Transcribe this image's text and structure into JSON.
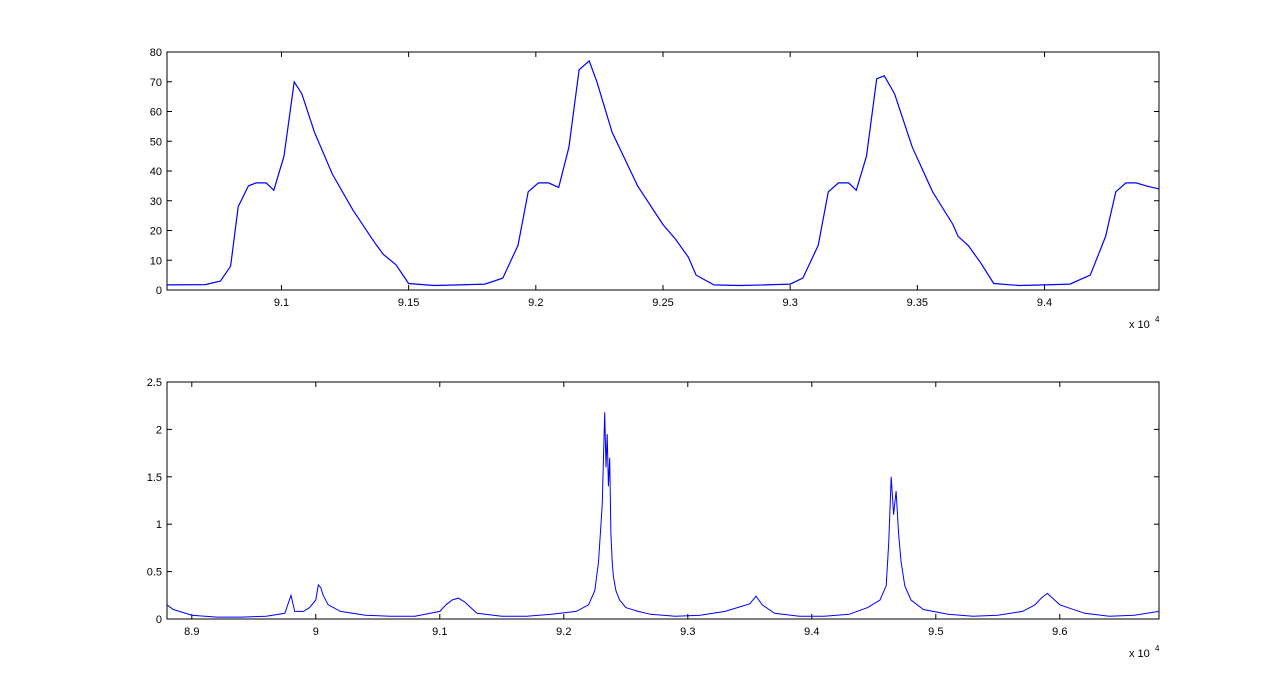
{
  "figure": {
    "background": "#ffffff",
    "line_color": "#0000ff",
    "axes_color": "#000000"
  },
  "chart_data": [
    {
      "type": "line",
      "title": "",
      "xlabel": "",
      "ylabel": "",
      "x_multiplier_label": "x 10",
      "x_multiplier_exp": "4",
      "xlim": [
        9.055,
        9.445
      ],
      "ylim": [
        0,
        80
      ],
      "x_ticks": [
        9.1,
        9.15,
        9.2,
        9.25,
        9.3,
        9.35,
        9.4
      ],
      "x_tick_labels": [
        "9.1",
        "9.15",
        "9.2",
        "9.25",
        "9.3",
        "9.35",
        "9.4"
      ],
      "y_ticks": [
        0,
        10,
        20,
        30,
        40,
        50,
        60,
        70,
        80
      ],
      "y_tick_labels": [
        "0",
        "10",
        "20",
        "30",
        "40",
        "50",
        "60",
        "70",
        "80"
      ],
      "grid": false,
      "series": [
        {
          "color": "#0000ff",
          "x": [
            9.055,
            9.07,
            9.076,
            9.08,
            9.083,
            9.087,
            9.09,
            9.094,
            9.097,
            9.101,
            9.105,
            9.108,
            9.113,
            9.12,
            9.128,
            9.135,
            9.137,
            9.14,
            9.145,
            9.15,
            9.16,
            9.17,
            9.18,
            9.187,
            9.193,
            9.197,
            9.201,
            9.205,
            9.209,
            9.213,
            9.217,
            9.221,
            9.224,
            9.23,
            9.24,
            9.25,
            9.255,
            9.26,
            9.263,
            9.27,
            9.28,
            9.29,
            9.3,
            9.305,
            9.311,
            9.315,
            9.319,
            9.323,
            9.326,
            9.33,
            9.334,
            9.337,
            9.341,
            9.348,
            9.356,
            9.364,
            9.366,
            9.37,
            9.375,
            9.38,
            9.39,
            9.4,
            9.41,
            9.418,
            9.424,
            9.428,
            9.432,
            9.436,
            9.44,
            9.445
          ],
          "y": [
            1.7,
            1.8,
            3,
            8,
            28,
            35,
            36,
            36,
            33.5,
            45,
            70,
            66,
            53,
            39,
            27,
            18,
            15.5,
            12,
            8.5,
            2.2,
            1.5,
            1.7,
            2,
            4,
            15,
            33,
            36,
            36,
            34.5,
            48,
            74,
            77,
            70,
            53,
            35,
            22,
            17,
            11,
            5,
            1.7,
            1.5,
            1.7,
            2,
            4,
            15,
            33,
            36,
            36,
            33.5,
            45,
            71,
            72,
            66,
            48,
            33,
            22,
            18,
            15,
            9,
            2.2,
            1.5,
            1.7,
            2,
            5,
            18,
            33,
            36,
            36,
            35,
            34
          ]
        }
      ]
    },
    {
      "type": "line",
      "title": "",
      "xlabel": "",
      "ylabel": "",
      "x_multiplier_label": "x 10",
      "x_multiplier_exp": "4",
      "xlim": [
        8.88,
        9.68
      ],
      "ylim": [
        0,
        2.5
      ],
      "x_ticks": [
        8.9,
        9.0,
        9.1,
        9.2,
        9.3,
        9.4,
        9.5,
        9.6
      ],
      "x_tick_labels": [
        "8.9",
        "9",
        "9.1",
        "9.2",
        "9.3",
        "9.4",
        "9.5",
        "9.6"
      ],
      "y_ticks": [
        0,
        0.5,
        1,
        1.5,
        2,
        2.5
      ],
      "y_tick_labels": [
        "0",
        "0.5",
        "1",
        "1.5",
        "2",
        "2.5"
      ],
      "grid": false,
      "series": [
        {
          "color": "#0000ff",
          "x": [
            8.88,
            8.885,
            8.89,
            8.9,
            8.92,
            8.94,
            8.96,
            8.975,
            8.98,
            8.983,
            8.99,
            8.995,
            9.0,
            9.002,
            9.004,
            9.006,
            9.01,
            9.02,
            9.04,
            9.06,
            9.08,
            9.1,
            9.105,
            9.11,
            9.115,
            9.12,
            9.125,
            9.13,
            9.15,
            9.17,
            9.19,
            9.21,
            9.22,
            9.225,
            9.228,
            9.231,
            9.233,
            9.234,
            9.235,
            9.236,
            9.237,
            9.238,
            9.239,
            9.24,
            9.242,
            9.245,
            9.25,
            9.26,
            9.27,
            9.29,
            9.31,
            9.33,
            9.34,
            9.35,
            9.355,
            9.36,
            9.37,
            9.39,
            9.41,
            9.43,
            9.445,
            9.455,
            9.46,
            9.462,
            9.464,
            9.466,
            9.468,
            9.47,
            9.472,
            9.475,
            9.48,
            9.49,
            9.51,
            9.53,
            9.55,
            9.57,
            9.58,
            9.585,
            9.59,
            9.6,
            9.62,
            9.64,
            9.66,
            9.68
          ],
          "y": [
            0.15,
            0.1,
            0.08,
            0.04,
            0.02,
            0.02,
            0.03,
            0.06,
            0.25,
            0.08,
            0.08,
            0.12,
            0.2,
            0.36,
            0.33,
            0.25,
            0.15,
            0.08,
            0.04,
            0.03,
            0.03,
            0.08,
            0.15,
            0.2,
            0.22,
            0.18,
            0.12,
            0.06,
            0.03,
            0.03,
            0.05,
            0.08,
            0.15,
            0.3,
            0.6,
            1.2,
            2.18,
            1.6,
            1.95,
            1.4,
            1.7,
            0.9,
            0.6,
            0.45,
            0.3,
            0.2,
            0.12,
            0.08,
            0.05,
            0.03,
            0.04,
            0.08,
            0.12,
            0.16,
            0.24,
            0.15,
            0.06,
            0.03,
            0.03,
            0.05,
            0.12,
            0.2,
            0.35,
            0.8,
            1.5,
            1.1,
            1.35,
            0.9,
            0.6,
            0.35,
            0.2,
            0.1,
            0.05,
            0.03,
            0.04,
            0.08,
            0.15,
            0.22,
            0.27,
            0.15,
            0.06,
            0.03,
            0.04,
            0.08
          ]
        }
      ]
    }
  ]
}
